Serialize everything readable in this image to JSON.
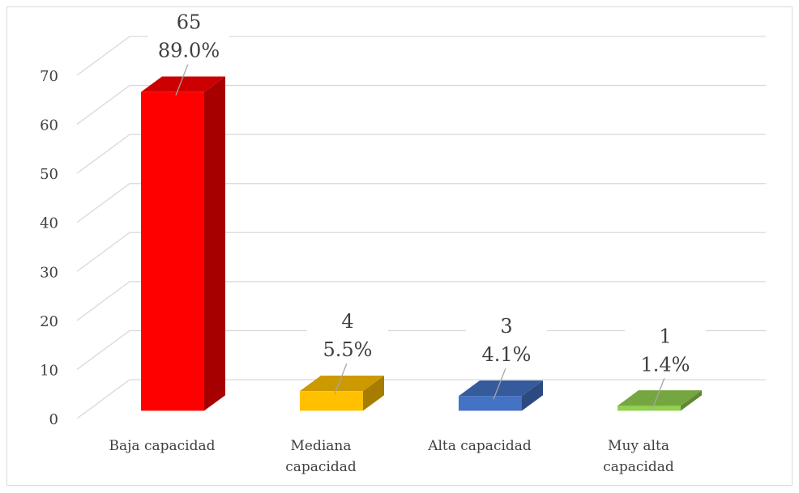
{
  "chart_data": {
    "type": "bar",
    "categories": [
      "Baja capacidad",
      "Mediana capacidad",
      "Alta capacidad",
      "Muy alta capacidad"
    ],
    "values": [
      65,
      4,
      3,
      1
    ],
    "percentages": [
      89.0,
      5.5,
      4.1,
      1.4
    ],
    "percentage_labels": [
      "89.0%",
      "5.5%",
      "4.1%",
      "1.4%"
    ],
    "colors": [
      "#ff0000",
      "#ffc000",
      "#4472c4",
      "#92d050"
    ],
    "ylim": [
      0,
      70
    ],
    "yticks": [
      0,
      10,
      20,
      30,
      40,
      50,
      60,
      70
    ],
    "grid": true
  }
}
